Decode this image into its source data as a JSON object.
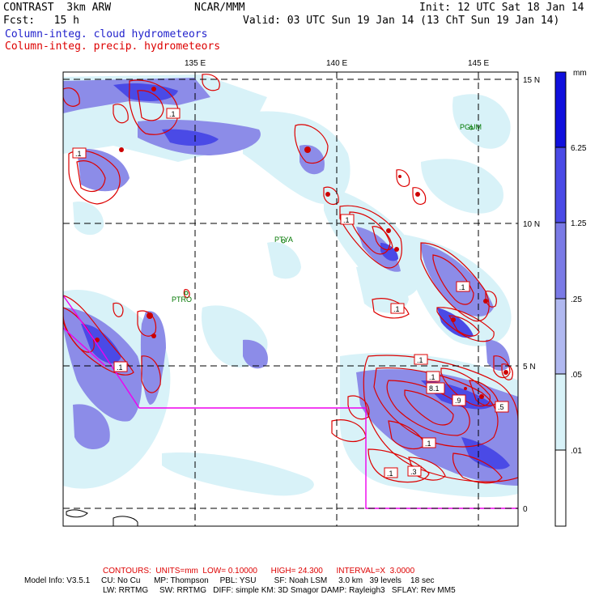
{
  "header": {
    "model": "CONTRAST  3km ARW",
    "org": "NCAR/MMM",
    "init": "Init: 12 UTC Sat 18 Jan 14",
    "fcst": "Fcst:   15 h",
    "valid": "Valid: 03 UTC Sun 19 Jan 14 (13 ChT Sun 19 Jan 14)",
    "field_blue": "Column-integ. cloud hydrometeors",
    "field_red": "Column-integ. precip. hydrometeors"
  },
  "map": {
    "lon_labels": [
      "135 E",
      "140 E",
      "145 E"
    ],
    "lat_labels": [
      "15 N",
      "10 N",
      "5 N",
      "0"
    ],
    "stations": [
      "PGUM",
      "PTYA",
      "PTRO"
    ],
    "contour_labels": [
      ".1",
      ".1",
      ".1",
      ".1",
      ".1",
      ".1",
      ".1",
      ".1",
      "8.1",
      ".9",
      ".5",
      ".1",
      ".1",
      ".3"
    ]
  },
  "colorbar": {
    "unit": "mm",
    "levels": [
      "6.25",
      "1.25",
      ".25",
      ".05",
      ".01"
    ],
    "colors": [
      "#1010dd",
      "#4a4ae6",
      "#7a7ae6",
      "#b0b8f0",
      "#d8f2f8",
      "#ffffff"
    ]
  },
  "footer": {
    "contours": "CONTOURS:  UNITS=mm  LOW= 0.10000      HIGH= 24.300      INTERVAL=X  3.0000",
    "line1": "Model Info: V3.5.1     CU: No Cu      MP: Thompson     PBL: YSU        SF: Noah LSM     3.0 km   39 levels    18 sec",
    "line2": "LW: RRTMG     SW: RRTMG   DIFF: simple KM: 3D Smagor DAMP: Rayleigh3   SFLAY: Rev MM5"
  }
}
